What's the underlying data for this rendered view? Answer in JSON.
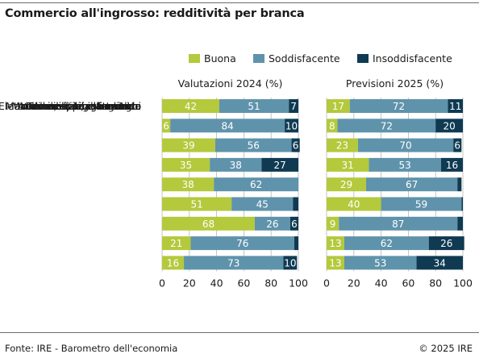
{
  "title": "Commercio all'ingrosso: redditività per branca",
  "footer": {
    "source": "Fonte: IRE - Barometro dell'economia",
    "copyright": "© 2025 IRE"
  },
  "colors": {
    "buona": "#b4c93c",
    "soddisfacente": "#5f93ab",
    "insoddisfacente": "#0f3a52",
    "rule": "#6e6e6e"
  },
  "chart_data": {
    "type": "bar",
    "orientation": "horizontal",
    "stacked": true,
    "legend_position": "top",
    "categories": [
      "Commercio all'ingrosso",
      "Intermediari commercio",
      "Alimentari e bevande",
      "Tessili e abbigliamento",
      "Arredamento, casalinghi",
      "Macchine, appar., forniture",
      "Mater. edili, legname ecc.",
      "Elettrodomestici, elettronica",
      "Altro"
    ],
    "series_names": [
      "Buona",
      "Soddisfacente",
      "Insoddisfacente"
    ],
    "panels": [
      {
        "title": "Valutazioni 2024 (%)",
        "xlim": [
          0,
          100
        ],
        "ticks": [
          0,
          20,
          40,
          60,
          80,
          100
        ],
        "series": [
          {
            "name": "Buona",
            "values": [
              42,
              6,
              39,
              35,
              38,
              51,
              68,
              21,
              16
            ]
          },
          {
            "name": "Soddisfacente",
            "values": [
              51,
              84,
              56,
              38,
              62,
              45,
              26,
              76,
              73
            ]
          },
          {
            "name": "Insoddisfacente",
            "values": [
              7,
              10,
              6,
              27,
              0,
              4,
              6,
              3,
              10
            ]
          }
        ],
        "labels": [
          [
            "42",
            "51",
            "7"
          ],
          [
            "6",
            "84",
            "10"
          ],
          [
            "39",
            "56",
            "6"
          ],
          [
            "35",
            "38",
            "27"
          ],
          [
            "38",
            "62",
            ""
          ],
          [
            "51",
            "45",
            ""
          ],
          [
            "68",
            "26",
            "6"
          ],
          [
            "21",
            "76",
            ""
          ],
          [
            "16",
            "73",
            "10"
          ]
        ]
      },
      {
        "title": "Previsioni 2025 (%)",
        "xlim": [
          0,
          100
        ],
        "ticks": [
          0,
          20,
          40,
          60,
          80,
          100
        ],
        "series": [
          {
            "name": "Buona",
            "values": [
              17,
              8,
              23,
              31,
              29,
              40,
              9,
              13,
              13
            ]
          },
          {
            "name": "Soddisfacente",
            "values": [
              72,
              72,
              70,
              53,
              67,
              59,
              87,
              62,
              53
            ]
          },
          {
            "name": "Insoddisfacente",
            "values": [
              11,
              20,
              6,
              16,
              3,
              1,
              4,
              26,
              34
            ]
          }
        ],
        "labels": [
          [
            "17",
            "72",
            "11"
          ],
          [
            "8",
            "72",
            "20"
          ],
          [
            "23",
            "70",
            "6"
          ],
          [
            "31",
            "53",
            "16"
          ],
          [
            "29",
            "67",
            ""
          ],
          [
            "40",
            "59",
            ""
          ],
          [
            "9",
            "87",
            ""
          ],
          [
            "13",
            "62",
            "26"
          ],
          [
            "13",
            "53",
            "34"
          ]
        ]
      }
    ]
  }
}
